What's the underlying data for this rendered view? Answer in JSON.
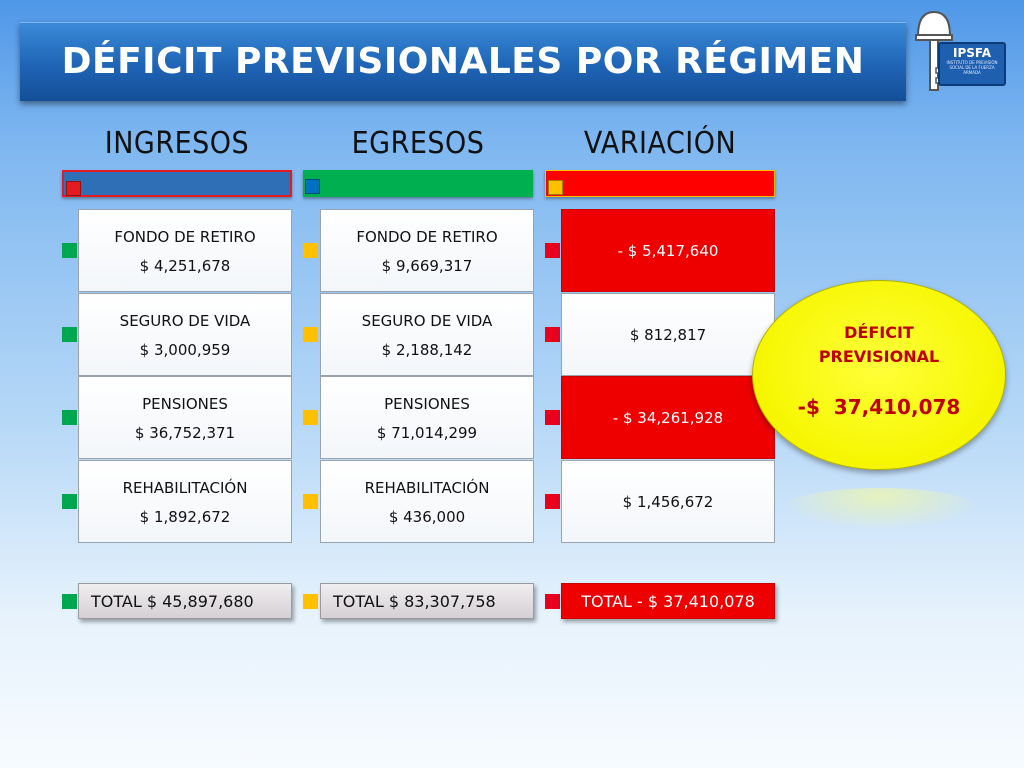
{
  "title": "DÉFICIT PREVISIONALES POR RÉGIMEN",
  "logo": {
    "name": "IPSFA",
    "subtitle": "INSTITUTO DE PREVISIÓN SOCIAL DE LA FUERZA ARMADA"
  },
  "columns": [
    {
      "header": "INGRESOS",
      "bar_color": "#2f6fb6",
      "bar_square_color": "#e31b23",
      "bullet_color": "#00a650",
      "items": [
        {
          "label": "FONDO DE RETIRO",
          "value": "$ 4,251,678"
        },
        {
          "label": "SEGURO DE VIDA",
          "value": "$ 3,000,959"
        },
        {
          "label": "PENSIONES",
          "value": "$ 36,752,371"
        },
        {
          "label": "REHABILITACIÓN",
          "value": "$ 1,892,672"
        }
      ],
      "total": "TOTAL $ 45,897,680"
    },
    {
      "header": "EGRESOS",
      "bar_color": "#00b050",
      "bar_square_color": "#0070c0",
      "bullet_color": "#ffc000",
      "items": [
        {
          "label": "FONDO DE RETIRO",
          "value": "$ 9,669,317"
        },
        {
          "label": "SEGURO DE VIDA",
          "value": "$ 2,188,142"
        },
        {
          "label": "PENSIONES",
          "value": "$ 71,014,299"
        },
        {
          "label": "REHABILITACIÓN",
          "value": "$ 436,000"
        }
      ],
      "total": "TOTAL $ 83,307,758"
    },
    {
      "header": "VARIACIÓN",
      "bar_color": "#ff0000",
      "bar_square_color": "#ffc000",
      "bullet_color": "#e8001c",
      "items": [
        {
          "value": "- $ 5,417,640",
          "negative": true
        },
        {
          "value": "$ 812,817",
          "negative": false
        },
        {
          "value": "- $ 34,261,928",
          "negative": true
        },
        {
          "value": "$ 1,456,672",
          "negative": false
        }
      ],
      "total": "TOTAL - $ 37,410,078"
    }
  ],
  "deficit": {
    "line1": "DÉFICIT",
    "line2": "PREVISIONAL",
    "amount": "-$  37,410,078"
  }
}
